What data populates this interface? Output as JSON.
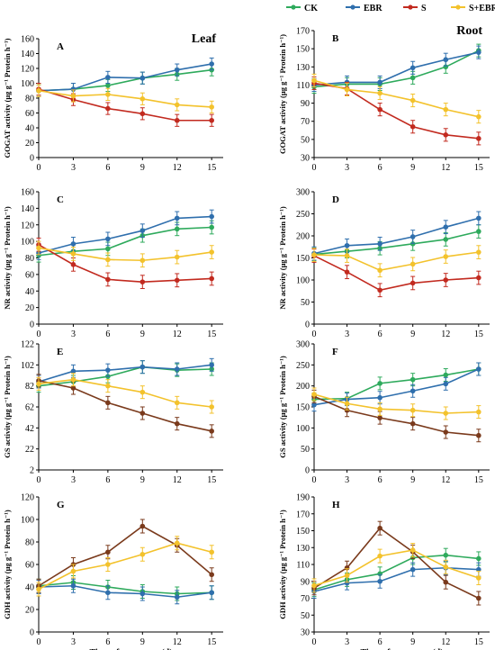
{
  "legend": [
    {
      "name": "CK",
      "color": "#2eaa5c"
    },
    {
      "name": "EBR",
      "color": "#2f6fad"
    },
    {
      "name": "S",
      "color": "#c22a1f"
    },
    {
      "name": "S+EBR",
      "color": "#f3c22c"
    }
  ],
  "x_axis": {
    "label": "Time of treatment (d)",
    "ticks": [
      0,
      3,
      6,
      9,
      12,
      15
    ]
  },
  "chart_data": [
    {
      "type": "line",
      "panel": "A",
      "title": "Leaf",
      "ylabel": "GOGAT activity (μg g⁻¹ Protein h⁻¹)",
      "ylim": [
        0,
        160
      ],
      "yticks": [
        0,
        20,
        40,
        60,
        80,
        100,
        120,
        140,
        160
      ],
      "x": [
        0,
        3,
        6,
        9,
        12,
        15
      ],
      "series": [
        {
          "name": "CK",
          "color": "#2eaa5c",
          "values": [
            90,
            92,
            97,
            107,
            112,
            118
          ]
        },
        {
          "name": "EBR",
          "color": "#2f6fad",
          "values": [
            90,
            92,
            108,
            107,
            118,
            126
          ]
        },
        {
          "name": "S",
          "color": "#c22a1f",
          "values": [
            92,
            78,
            66,
            59,
            50,
            50
          ]
        },
        {
          "name": "S+EBR",
          "color": "#f3c22c",
          "values": [
            90,
            83,
            85,
            79,
            71,
            68
          ]
        }
      ]
    },
    {
      "type": "line",
      "panel": "B",
      "title": "Root",
      "ylabel": "GOGAT activity (μg g⁻¹ Protein h⁻¹)",
      "ylim": [
        30,
        170
      ],
      "yticks": [
        30,
        50,
        70,
        90,
        110,
        130,
        150,
        170
      ],
      "x": [
        0,
        3,
        6,
        9,
        12,
        15
      ],
      "series": [
        {
          "name": "CK",
          "color": "#2eaa5c",
          "values": [
            108,
            111,
            111,
            118,
            130,
            148
          ]
        },
        {
          "name": "EBR",
          "color": "#2f6fad",
          "values": [
            110,
            113,
            113,
            129,
            138,
            146
          ]
        },
        {
          "name": "S",
          "color": "#c22a1f",
          "values": [
            112,
            106,
            83,
            64,
            55,
            51
          ]
        },
        {
          "name": "S+EBR",
          "color": "#f3c22c",
          "values": [
            115,
            105,
            101,
            93,
            83,
            75
          ]
        }
      ]
    },
    {
      "type": "line",
      "panel": "C",
      "ylabel": "NR activity (μg g⁻¹ Protein h⁻¹)",
      "ylim": [
        0,
        160
      ],
      "yticks": [
        0,
        20,
        40,
        60,
        80,
        100,
        120,
        140,
        160
      ],
      "x": [
        0,
        3,
        6,
        9,
        12,
        15
      ],
      "series": [
        {
          "name": "CK",
          "color": "#2eaa5c",
          "values": [
            83,
            88,
            91,
            107,
            115,
            117
          ]
        },
        {
          "name": "EBR",
          "color": "#2f6fad",
          "values": [
            86,
            97,
            103,
            113,
            128,
            130
          ]
        },
        {
          "name": "S",
          "color": "#c22a1f",
          "values": [
            96,
            72,
            54,
            51,
            53,
            55
          ]
        },
        {
          "name": "S+EBR",
          "color": "#f3c22c",
          "values": [
            92,
            85,
            78,
            77,
            81,
            87
          ]
        }
      ]
    },
    {
      "type": "line",
      "panel": "D",
      "ylabel": "NR activity (μg g⁻¹ Protein h⁻¹)",
      "ylim": [
        0,
        300
      ],
      "yticks": [
        0,
        50,
        100,
        150,
        200,
        250,
        300
      ],
      "x": [
        0,
        3,
        6,
        9,
        12,
        15
      ],
      "series": [
        {
          "name": "CK",
          "color": "#2eaa5c",
          "values": [
            158,
            165,
            172,
            182,
            192,
            210
          ]
        },
        {
          "name": "EBR",
          "color": "#2f6fad",
          "values": [
            160,
            178,
            182,
            198,
            220,
            240
          ]
        },
        {
          "name": "S",
          "color": "#c22a1f",
          "values": [
            155,
            118,
            77,
            93,
            100,
            105
          ]
        },
        {
          "name": "S+EBR",
          "color": "#f3c22c",
          "values": [
            157,
            155,
            122,
            136,
            153,
            163
          ]
        }
      ]
    },
    {
      "type": "line",
      "panel": "E",
      "ylabel": "GS activity (μg g⁻¹ Protein h⁻¹)",
      "ylim": [
        2,
        122
      ],
      "yticks": [
        2,
        22,
        42,
        62,
        82,
        102,
        122
      ],
      "x": [
        0,
        3,
        6,
        9,
        12,
        15
      ],
      "series": [
        {
          "name": "CK",
          "color": "#2eaa5c",
          "values": [
            82,
            86,
            91,
            100,
            97,
            98
          ]
        },
        {
          "name": "EBR",
          "color": "#2f6fad",
          "values": [
            86,
            96,
            97,
            100,
            98,
            102
          ]
        },
        {
          "name": "S",
          "color": "#7a3a1c",
          "values": [
            87,
            80,
            66,
            56,
            46,
            39
          ]
        },
        {
          "name": "S+EBR",
          "color": "#f3c22c",
          "values": [
            84,
            88,
            82,
            76,
            66,
            62
          ]
        }
      ]
    },
    {
      "type": "line",
      "panel": "F",
      "ylabel": "GS activity (μg g⁻¹ Protein h⁻¹)",
      "ylim": [
        0,
        300
      ],
      "yticks": [
        0,
        50,
        100,
        150,
        200,
        250,
        300
      ],
      "x": [
        0,
        3,
        6,
        9,
        12,
        15
      ],
      "series": [
        {
          "name": "CK",
          "color": "#2eaa5c",
          "values": [
            168,
            170,
            206,
            215,
            226,
            240
          ]
        },
        {
          "name": "EBR",
          "color": "#2f6fad",
          "values": [
            155,
            168,
            172,
            188,
            205,
            240
          ]
        },
        {
          "name": "S",
          "color": "#7a3a1c",
          "values": [
            175,
            142,
            124,
            110,
            90,
            82
          ]
        },
        {
          "name": "S+EBR",
          "color": "#f3c22c",
          "values": [
            180,
            158,
            145,
            142,
            135,
            138
          ]
        }
      ]
    },
    {
      "type": "line",
      "panel": "G",
      "ylabel": "GDH activity (μg g⁻¹ Protein h⁻¹)",
      "ylim": [
        0,
        120
      ],
      "yticks": [
        0,
        20,
        40,
        60,
        80,
        100,
        120
      ],
      "x": [
        0,
        3,
        6,
        9,
        12,
        15
      ],
      "series": [
        {
          "name": "CK",
          "color": "#2eaa5c",
          "values": [
            41,
            44,
            40,
            36,
            34,
            35
          ]
        },
        {
          "name": "EBR",
          "color": "#2f6fad",
          "values": [
            40,
            41,
            35,
            34,
            31,
            35
          ]
        },
        {
          "name": "S",
          "color": "#7a3a1c",
          "values": [
            41,
            60,
            71,
            94,
            77,
            51
          ]
        },
        {
          "name": "S+EBR",
          "color": "#f3c22c",
          "values": [
            38,
            54,
            60,
            69,
            79,
            71
          ]
        }
      ]
    },
    {
      "type": "line",
      "panel": "H",
      "ylabel": "GDH activity (μg g⁻¹ Protein h⁻¹)",
      "ylim": [
        30,
        190
      ],
      "yticks": [
        30,
        50,
        70,
        90,
        110,
        130,
        150,
        170,
        190
      ],
      "x": [
        0,
        3,
        6,
        9,
        12,
        15
      ],
      "series": [
        {
          "name": "CK",
          "color": "#2eaa5c",
          "values": [
            80,
            92,
            99,
            118,
            121,
            117
          ]
        },
        {
          "name": "EBR",
          "color": "#2f6fad",
          "values": [
            78,
            88,
            90,
            104,
            106,
            104
          ]
        },
        {
          "name": "S",
          "color": "#7a3a1c",
          "values": [
            82,
            106,
            153,
            125,
            89,
            70
          ]
        },
        {
          "name": "S+EBR",
          "color": "#f3c22c",
          "values": [
            85,
            97,
            120,
            127,
            107,
            94
          ]
        }
      ]
    }
  ]
}
